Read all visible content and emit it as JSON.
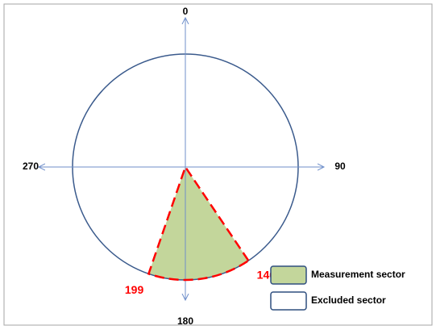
{
  "diagram": {
    "axis_labels": [
      0,
      90,
      180,
      270
    ],
    "sector": {
      "start": 146,
      "end": 199,
      "color": "#c3d69b",
      "edge_color": "#ff0000"
    },
    "legend": [
      {
        "label": "Measurement sector",
        "color": "#c3d69b"
      },
      {
        "label": "Excluded sector",
        "color": "#ffffff"
      }
    ]
  }
}
